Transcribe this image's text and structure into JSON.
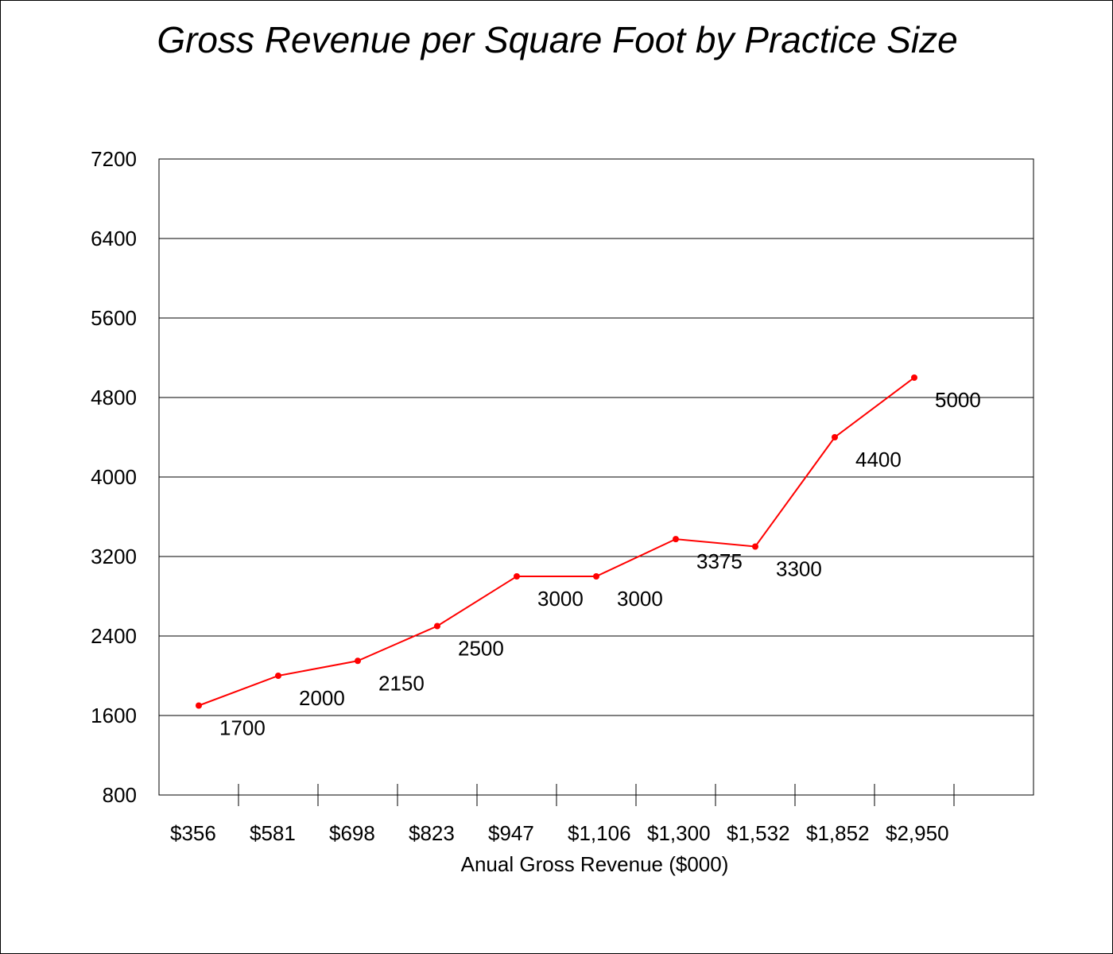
{
  "chart_data": {
    "type": "line",
    "title": "Gross Revenue per Square Foot by Practice Size",
    "xlabel": "Anual Gross Revenue ($000)",
    "ylabel": "",
    "categories": [
      "$356",
      "$581",
      "$698",
      "$823",
      "$947",
      "$1,106",
      "$1,300",
      "$1,532",
      "$1,852",
      "$2,950"
    ],
    "series": [
      {
        "values": [
          1700,
          2000,
          2150,
          2500,
          3000,
          3000,
          3375,
          3300,
          4400,
          5000
        ],
        "color": "#ff0000"
      }
    ],
    "data_labels": [
      "1700",
      "2000",
      "2150",
      "2500",
      "3000",
      "3000",
      "3375",
      "3300",
      "4400",
      "5000"
    ],
    "yticks": [
      800,
      1600,
      2400,
      3200,
      4000,
      4800,
      5600,
      6400,
      7200
    ],
    "ytick_labels": [
      "800",
      "1600",
      "2400",
      "3200",
      "4000",
      "4800",
      "5600",
      "6400",
      "7200"
    ],
    "ylim": [
      800,
      7200
    ],
    "grid": "horizontal",
    "legend": "none"
  }
}
